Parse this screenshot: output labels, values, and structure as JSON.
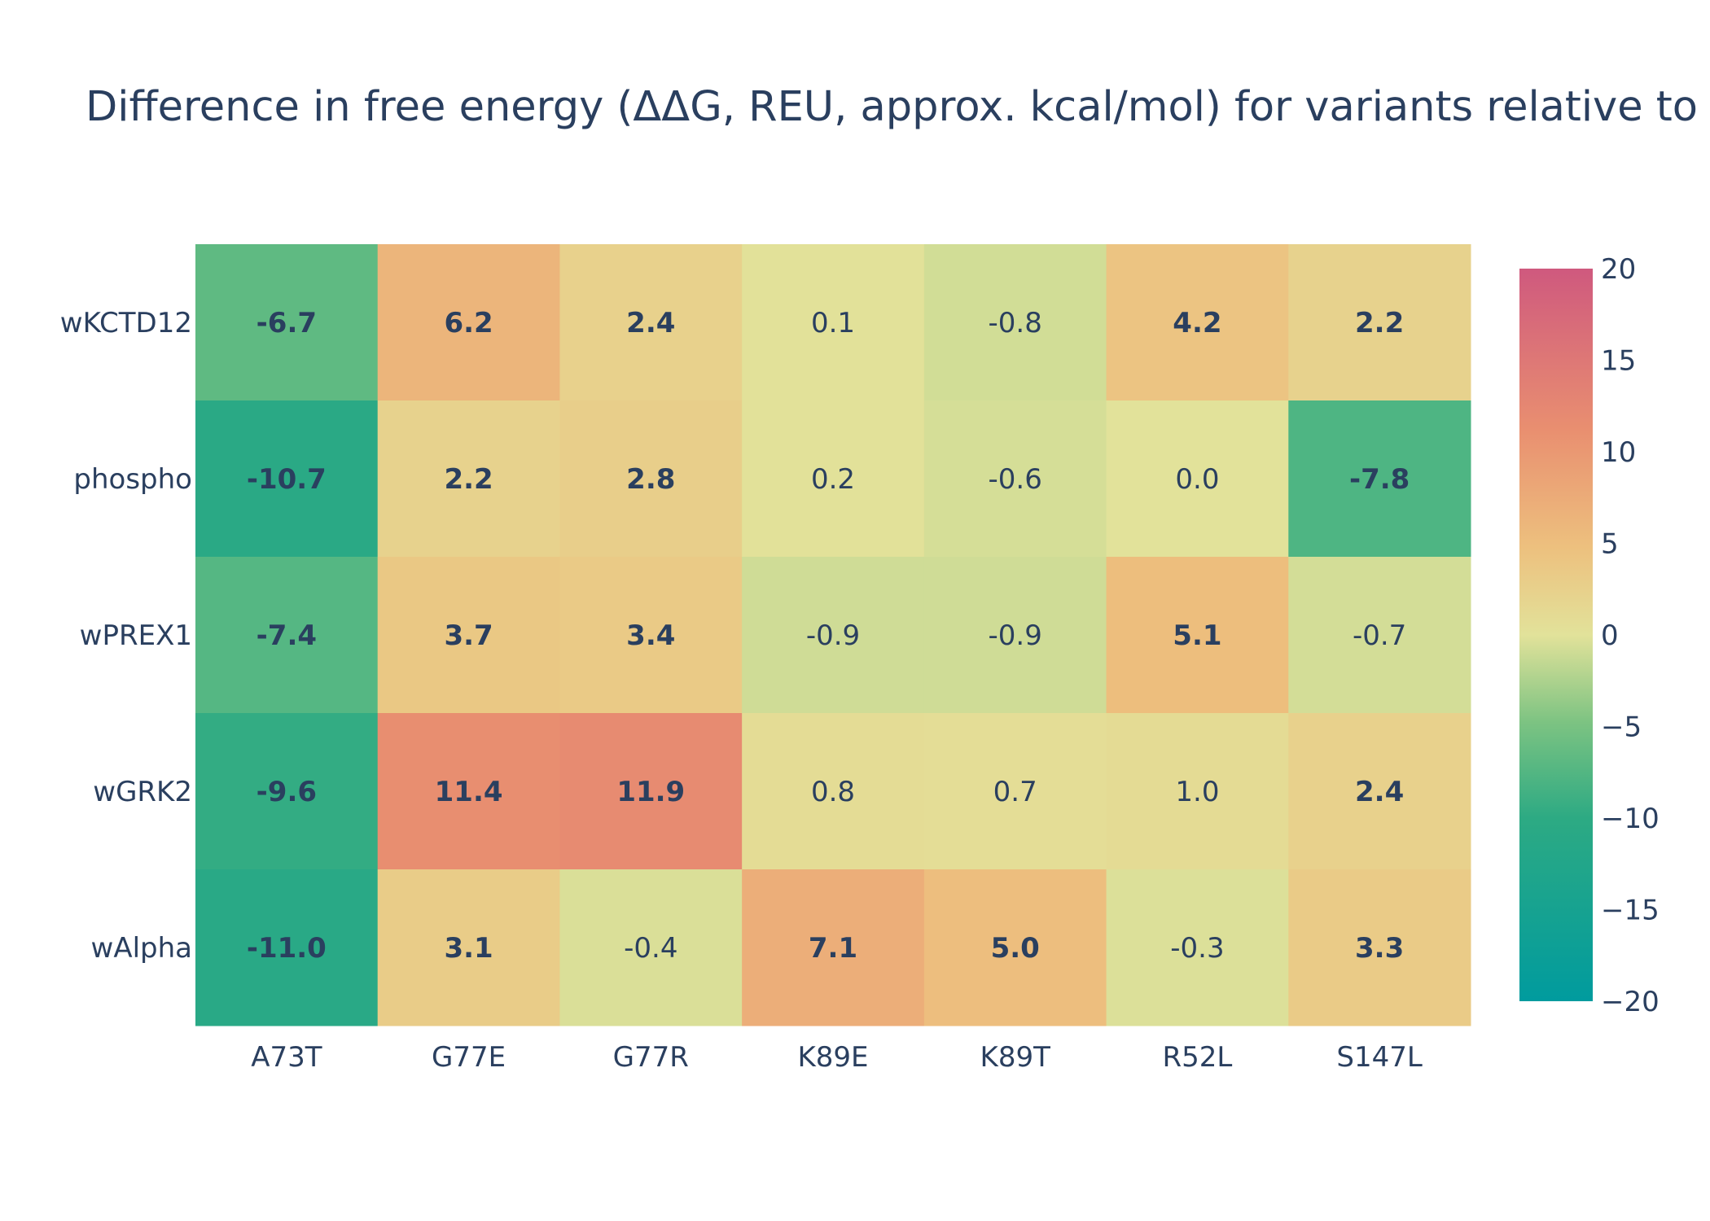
{
  "chart_data": {
    "type": "heatmap",
    "title": "Difference in free energy (ΔΔG, REU, approx. kcal/mol) for variants relative to",
    "x_categories": [
      "A73T",
      "G77E",
      "G77R",
      "K89E",
      "K89T",
      "R52L",
      "S147L"
    ],
    "y_categories": [
      "wKCTD12",
      "phospho",
      "wPREX1",
      "wGRK2",
      "wAlpha"
    ],
    "values": [
      [
        -6.7,
        6.2,
        2.4,
        0.1,
        -0.8,
        4.2,
        2.2
      ],
      [
        -10.7,
        2.2,
        2.8,
        0.2,
        -0.6,
        0.0,
        -7.8
      ],
      [
        -7.4,
        3.7,
        3.4,
        -0.9,
        -0.9,
        5.1,
        -0.7
      ],
      [
        -9.6,
        11.4,
        11.9,
        0.8,
        0.7,
        1.0,
        2.4
      ],
      [
        -11.0,
        3.1,
        -0.4,
        7.1,
        5.0,
        -0.3,
        3.3
      ]
    ],
    "labels": [
      [
        "-6.7",
        "6.2",
        "2.4",
        "0.1",
        "-0.8",
        "4.2",
        "2.2"
      ],
      [
        "-10.7",
        "2.2",
        "2.8",
        "0.2",
        "-0.6",
        "0.0",
        "-7.8"
      ],
      [
        "-7.4",
        "3.7",
        "3.4",
        "-0.9",
        "-0.9",
        "5.1",
        "-0.7"
      ],
      [
        "-9.6",
        "11.4",
        "11.9",
        "0.8",
        "0.7",
        "1.0",
        "2.4"
      ],
      [
        "-11.0",
        "3.1",
        "-0.4",
        "7.1",
        "5.0",
        "-0.3",
        "3.3"
      ]
    ],
    "bold_threshold_abs": 2.0,
    "zmin": -20,
    "zmax": 20,
    "colorbar_ticks": [
      20,
      15,
      10,
      5,
      0,
      -5,
      -10,
      -15,
      -20
    ],
    "colorbar_tick_labels": [
      "20",
      "15",
      "10",
      "5",
      "0",
      "−5",
      "−10",
      "−15",
      "−20"
    ],
    "colorscale": [
      [
        0.0,
        "#009B9E"
      ],
      [
        0.167,
        "#42B7B9"
      ],
      [
        0.333,
        "#A7D3D4"
      ],
      [
        0.5,
        "#F1F1F1"
      ],
      [
        0.667,
        "#E4C1D9"
      ],
      [
        0.833,
        "#D691C1"
      ],
      [
        1.0,
        "#C75DAB"
      ]
    ],
    "colorscale_display": [
      [
        0.0,
        "#009B9E"
      ],
      [
        0.25,
        "#2DAA83"
      ],
      [
        0.38,
        "#7CC382"
      ],
      [
        0.5,
        "#E2E29A"
      ],
      [
        0.62,
        "#EDC07E"
      ],
      [
        0.78,
        "#E98F70"
      ],
      [
        1.0,
        "#CF597E"
      ]
    ]
  }
}
